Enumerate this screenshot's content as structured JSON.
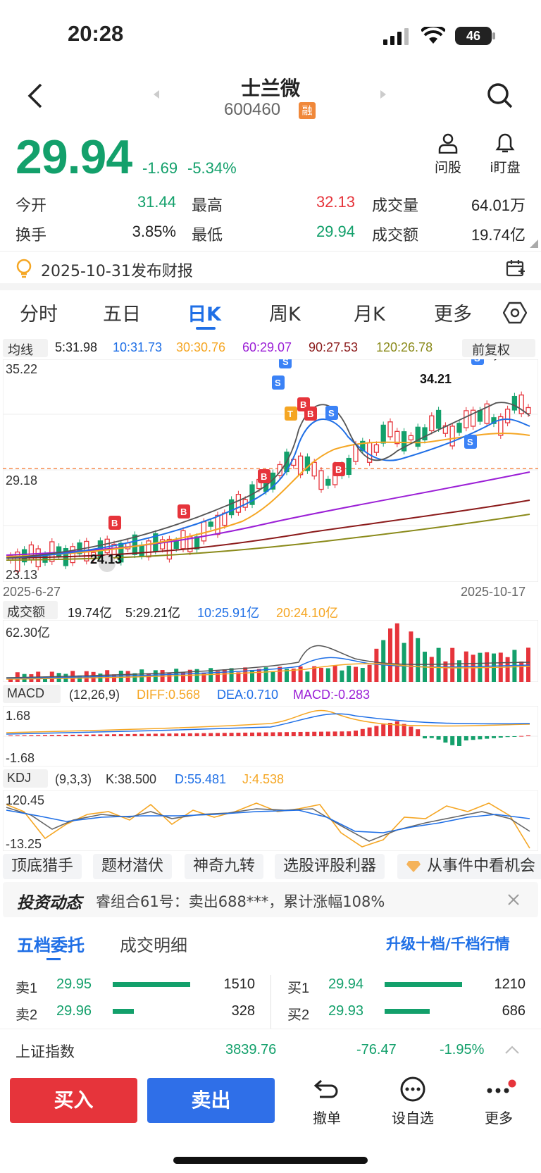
{
  "status_bar": {
    "time": "20:28",
    "battery": "46"
  },
  "header": {
    "name": "士兰微",
    "code": "600460",
    "margin_badge": "融"
  },
  "quote": {
    "price": "29.94",
    "change": "-1.69",
    "change_pct": "-5.34%",
    "tools": [
      {
        "icon": "user-question-icon",
        "label": "问股"
      },
      {
        "icon": "bell-icon",
        "label": "i盯盘"
      }
    ]
  },
  "stats": [
    {
      "label": "今开",
      "value": "31.44",
      "color": "#13a06b"
    },
    {
      "label": "最高",
      "value": "32.13",
      "color": "#e6343b"
    },
    {
      "label": "成交量",
      "value": "64.01万",
      "color": "#222222"
    },
    {
      "label": "换手",
      "value": "3.85%",
      "color": "#222222"
    },
    {
      "label": "最低",
      "value": "29.94",
      "color": "#13a06b"
    },
    {
      "label": "成交额",
      "value": "19.74亿",
      "color": "#222222"
    }
  ],
  "notice": {
    "text": "2025-10-31发布财报"
  },
  "tabs": [
    "分时",
    "五日",
    "日K",
    "周K",
    "月K",
    "更多"
  ],
  "active_tab": "日K",
  "kline": {
    "ma_toggle": "均线",
    "ma_values": [
      {
        "label": "5:31.98",
        "color": "#222222"
      },
      {
        "label": "10:31.73",
        "color": "#1f6fe6"
      },
      {
        "label": "30:30.76",
        "color": "#f5a623"
      },
      {
        "label": "60:29.07",
        "color": "#9b1fd6"
      },
      {
        "label": "90:27.53",
        "color": "#8b1a1a"
      },
      {
        "label": "120:26.78",
        "color": "#8a8a1a"
      }
    ],
    "adjust": "前复权",
    "y_top": "35.22",
    "y_mid": "29.18",
    "y_bot": "23.13",
    "date_start": "2025-6-27",
    "date_end": "2025-10-17",
    "high_label": "34.21",
    "low_label": "24.13"
  },
  "volume": {
    "toggle": "成交额",
    "values": [
      {
        "label": "19.74亿",
        "color": "#222222"
      },
      {
        "label": "5:29.21亿",
        "color": "#222222"
      },
      {
        "label": "10:25.91亿",
        "color": "#1f6fe6"
      },
      {
        "label": "20:24.10亿",
        "color": "#f5a623"
      }
    ],
    "y_top": "62.30亿"
  },
  "macd": {
    "toggle": "MACD",
    "params": "(12,26,9)",
    "diff": "DIFF:0.568",
    "dea": "DEA:0.710",
    "macd": "MACD:-0.283",
    "y_top": "1.68",
    "y_bot": "-1.68"
  },
  "kdj": {
    "toggle": "KDJ",
    "params": "(9,3,3)",
    "k": "K:38.500",
    "d": "D:55.481",
    "j": "J:4.538",
    "y_top": "120.45",
    "y_bot": "-13.25"
  },
  "feature_tags": [
    "顶底猎手",
    "题材潜伏",
    "神奇九转",
    "选股评股利器",
    "从事件中看机会"
  ],
  "news": {
    "brand": "投资动态",
    "text": "睿组合61号：卖出688***，累计涨幅108%"
  },
  "orderbook": {
    "tab_active": "五档委托",
    "tab_other": "成交明细",
    "upgrade": "升级十档/千档行情",
    "sell": [
      {
        "label": "卖1",
        "price": "29.95",
        "qty": "1510",
        "ratio": 0.88
      },
      {
        "label": "卖2",
        "price": "29.96",
        "qty": "328",
        "ratio": 0.24
      }
    ],
    "buy": [
      {
        "label": "买1",
        "price": "29.94",
        "qty": "1210",
        "ratio": 0.88
      },
      {
        "label": "买2",
        "price": "29.93",
        "qty": "686",
        "ratio": 0.5
      }
    ]
  },
  "index_ticker": {
    "name": "上证指数",
    "value": "3839.76",
    "change": "-76.47",
    "change_pct": "-1.95%"
  },
  "actions": {
    "buy": "买入",
    "sell": "卖出",
    "cancel": "撤单",
    "watch": "设自选",
    "more": "更多"
  }
}
